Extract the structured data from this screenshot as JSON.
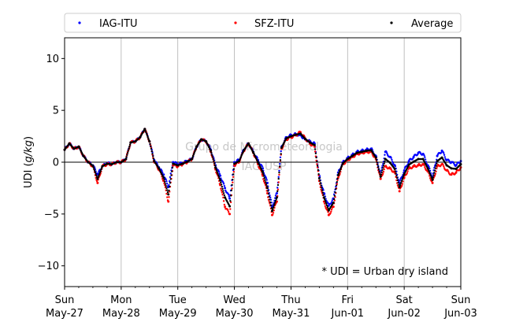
{
  "chart_data": {
    "type": "scatter",
    "ylabel": "UDI (g/kg)",
    "ylabel_parts": {
      "prefix": "UDI (",
      "unit": "g/kg",
      "suffix": ")"
    },
    "ylim": [
      -12,
      12
    ],
    "yticks": [
      -10,
      -5,
      0,
      5,
      10
    ],
    "xlim": [
      0,
      168
    ],
    "x_unit": "hours since Sun May-27 00:00",
    "x_major_ticks": [
      {
        "x": 0,
        "day": "Sun",
        "date": "May-27"
      },
      {
        "x": 24,
        "day": "Mon",
        "date": "May-28"
      },
      {
        "x": 48,
        "day": "Tue",
        "date": "May-29"
      },
      {
        "x": 72,
        "day": "Wed",
        "date": "May-30"
      },
      {
        "x": 96,
        "day": "Thu",
        "date": "May-31"
      },
      {
        "x": 120,
        "day": "Fri",
        "date": "Jun-01"
      },
      {
        "x": 144,
        "day": "Sat",
        "date": "Jun-02"
      },
      {
        "x": 168,
        "day": "Sun",
        "date": "Jun-03"
      }
    ],
    "vertical_grid": true,
    "zero_line": true,
    "legend": {
      "placement": "top, outside, full width",
      "columns": 3
    },
    "annotation": "* UDI = Urban dry island",
    "watermark": [
      "Grupo de Micrometeorologia",
      "IAG-USP"
    ],
    "series": [
      {
        "name": "IAG-ITU",
        "color": "#0000ff",
        "x": [
          0,
          2,
          4,
          6,
          8,
          10,
          12,
          14,
          16,
          18,
          20,
          22,
          24,
          26,
          28,
          30,
          32,
          34,
          36,
          38,
          40,
          42,
          44,
          46,
          48,
          50,
          52,
          54,
          56,
          58,
          60,
          62,
          64,
          66,
          68,
          70,
          72,
          74,
          76,
          78,
          80,
          82,
          84,
          86,
          88,
          90,
          92,
          94,
          96,
          98,
          100,
          102,
          104,
          106,
          108,
          110,
          112,
          114,
          116,
          118,
          120,
          122,
          124,
          126,
          128,
          130,
          132,
          134,
          136,
          138,
          140,
          142,
          144,
          146,
          148,
          150,
          152,
          154,
          156,
          158,
          160,
          162,
          164,
          166,
          168
        ],
        "y": [
          1.2,
          1.8,
          1.3,
          1.5,
          0.6,
          0.0,
          -0.3,
          -1.2,
          -0.4,
          -0.1,
          -0.2,
          0.0,
          0.0,
          0.3,
          1.9,
          2.0,
          2.4,
          3.2,
          2.0,
          0.2,
          -0.5,
          -1.2,
          -2.4,
          0.0,
          -0.2,
          -0.1,
          0.1,
          0.3,
          1.5,
          2.2,
          2.0,
          1.2,
          -0.3,
          -1.3,
          -2.5,
          -3.5,
          0.0,
          0.2,
          1.2,
          1.8,
          1.0,
          0.2,
          -0.6,
          -2.0,
          -4.3,
          -3.0,
          1.5,
          2.4,
          2.6,
          2.7,
          2.6,
          2.2,
          2.0,
          1.8,
          -1.3,
          -3.0,
          -4.2,
          -3.5,
          -1.0,
          0.0,
          0.4,
          0.7,
          1.0,
          1.1,
          1.2,
          1.3,
          0.6,
          -1.2,
          1.0,
          0.5,
          -0.3,
          -2.0,
          -0.8,
          0.1,
          0.5,
          0.9,
          0.8,
          -0.3,
          -1.4,
          0.6,
          1.1,
          0.2,
          0.0,
          -0.3,
          0.1
        ]
      },
      {
        "name": "SFZ-ITU",
        "color": "#ff0000",
        "x": [
          0,
          2,
          4,
          6,
          8,
          10,
          12,
          14,
          16,
          18,
          20,
          22,
          24,
          26,
          28,
          30,
          32,
          34,
          36,
          38,
          40,
          42,
          44,
          46,
          48,
          50,
          52,
          54,
          56,
          58,
          60,
          62,
          64,
          66,
          68,
          70,
          72,
          74,
          76,
          78,
          80,
          82,
          84,
          86,
          88,
          90,
          92,
          94,
          96,
          98,
          100,
          102,
          104,
          106,
          108,
          110,
          112,
          114,
          116,
          118,
          120,
          122,
          124,
          126,
          128,
          130,
          132,
          134,
          136,
          138,
          140,
          142,
          144,
          146,
          148,
          150,
          152,
          154,
          156,
          158,
          160,
          162,
          164,
          166,
          168
        ],
        "y": [
          1.2,
          1.8,
          1.3,
          1.5,
          0.6,
          0.0,
          -0.4,
          -2.0,
          -0.4,
          -0.2,
          -0.2,
          0.0,
          0.0,
          0.3,
          1.9,
          2.0,
          2.4,
          3.2,
          2.0,
          0.0,
          -0.7,
          -1.8,
          -3.8,
          -0.3,
          -0.4,
          -0.2,
          0.0,
          0.3,
          1.5,
          2.2,
          2.0,
          1.0,
          -0.7,
          -2.2,
          -4.3,
          -5.0,
          -0.3,
          0.0,
          1.1,
          1.8,
          0.9,
          -0.2,
          -1.3,
          -3.0,
          -5.1,
          -3.8,
          1.3,
          2.2,
          2.4,
          2.6,
          2.9,
          2.3,
          1.8,
          1.5,
          -1.8,
          -3.8,
          -5.1,
          -4.3,
          -1.5,
          -0.2,
          0.2,
          0.5,
          0.8,
          0.9,
          1.0,
          1.0,
          0.3,
          -1.6,
          -0.4,
          -0.6,
          -1.0,
          -2.8,
          -1.5,
          -0.6,
          -0.4,
          -0.3,
          -0.2,
          -0.9,
          -2.0,
          -0.4,
          -0.2,
          -0.8,
          -1.2,
          -1.0,
          -0.5
        ]
      },
      {
        "name": "Average",
        "color": "#000000",
        "x": [
          0,
          2,
          4,
          6,
          8,
          10,
          12,
          14,
          16,
          18,
          20,
          22,
          24,
          26,
          28,
          30,
          32,
          34,
          36,
          38,
          40,
          42,
          44,
          46,
          48,
          50,
          52,
          54,
          56,
          58,
          60,
          62,
          64,
          66,
          68,
          70,
          72,
          74,
          76,
          78,
          80,
          82,
          84,
          86,
          88,
          90,
          92,
          94,
          96,
          98,
          100,
          102,
          104,
          106,
          108,
          110,
          112,
          114,
          116,
          118,
          120,
          122,
          124,
          126,
          128,
          130,
          132,
          134,
          136,
          138,
          140,
          142,
          144,
          146,
          148,
          150,
          152,
          154,
          156,
          158,
          160,
          162,
          164,
          166,
          168
        ],
        "y": [
          1.2,
          1.8,
          1.3,
          1.5,
          0.6,
          0.0,
          -0.35,
          -1.6,
          -0.4,
          -0.15,
          -0.2,
          0.0,
          0.0,
          0.3,
          1.9,
          2.0,
          2.4,
          3.2,
          2.0,
          0.1,
          -0.6,
          -1.5,
          -3.1,
          -0.15,
          -0.3,
          -0.15,
          0.05,
          0.3,
          1.5,
          2.2,
          2.0,
          1.1,
          -0.5,
          -1.75,
          -3.4,
          -4.25,
          -0.15,
          0.1,
          1.15,
          1.8,
          0.95,
          0.0,
          -0.95,
          -2.5,
          -4.7,
          -3.4,
          1.4,
          2.3,
          2.5,
          2.65,
          2.75,
          2.25,
          1.9,
          1.65,
          -1.55,
          -3.4,
          -4.65,
          -3.9,
          -1.25,
          -0.1,
          0.3,
          0.6,
          0.9,
          1.0,
          1.1,
          1.15,
          0.45,
          -1.4,
          0.3,
          -0.05,
          -0.65,
          -2.4,
          -1.15,
          -0.25,
          0.05,
          0.3,
          0.3,
          -0.6,
          -1.7,
          0.1,
          0.45,
          -0.3,
          -0.6,
          -0.65,
          -0.2
        ]
      }
    ]
  }
}
